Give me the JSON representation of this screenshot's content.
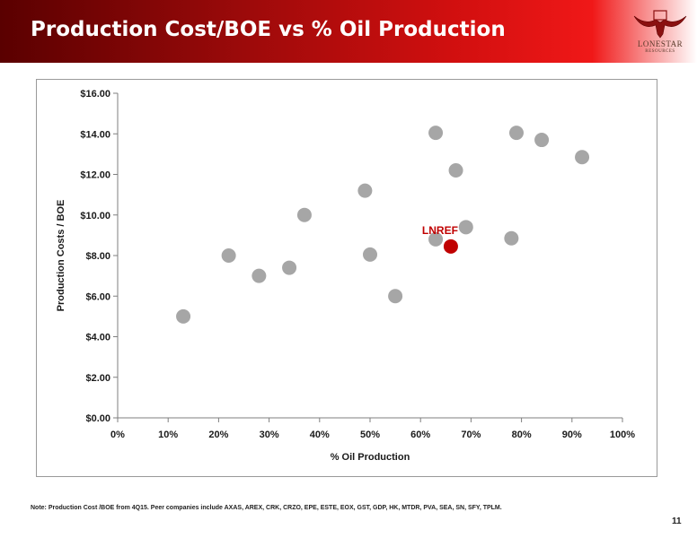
{
  "header": {
    "title": "Production Cost/BOE vs % Oil Production",
    "logo_word": "LONESTAR",
    "logo_sub": "RESOURCES",
    "logo_icon": "longhorn-icon"
  },
  "chart_data": {
    "type": "scatter",
    "title": "",
    "xlabel": "% Oil Production",
    "ylabel": "Production Costs / BOE",
    "xlim": [
      0,
      100
    ],
    "ylim": [
      0,
      16
    ],
    "x_ticks": [
      "0%",
      "10%",
      "20%",
      "30%",
      "40%",
      "50%",
      "60%",
      "70%",
      "80%",
      "90%",
      "100%"
    ],
    "y_ticks": [
      "$0.00",
      "$2.00",
      "$4.00",
      "$6.00",
      "$8.00",
      "$10.00",
      "$12.00",
      "$14.00",
      "$16.00"
    ],
    "grid": false,
    "legend": "none",
    "peer_color": "#a6a6a6",
    "highlight_color": "#c00000",
    "series": [
      {
        "points": [
          {
            "x": 13,
            "y": 5.0
          },
          {
            "x": 22,
            "y": 8.0
          },
          {
            "x": 28,
            "y": 7.0
          },
          {
            "x": 34,
            "y": 7.4
          },
          {
            "x": 37,
            "y": 10.0
          },
          {
            "x": 49,
            "y": 11.2
          },
          {
            "x": 50,
            "y": 8.05
          },
          {
            "x": 55,
            "y": 6.0
          },
          {
            "x": 63,
            "y": 14.05
          },
          {
            "x": 63,
            "y": 8.8
          },
          {
            "x": 67,
            "y": 12.2
          },
          {
            "x": 69,
            "y": 9.4
          },
          {
            "x": 78,
            "y": 8.85
          },
          {
            "x": 79,
            "y": 14.05
          },
          {
            "x": 84,
            "y": 13.7
          },
          {
            "x": 92,
            "y": 12.85
          }
        ]
      },
      {
        "name": "LNREF",
        "points": [
          {
            "x": 66,
            "y": 8.45
          }
        ]
      }
    ]
  },
  "footnote": "Note: Production Cost /BOE from 4Q15. Peer companies include AXAS, AREX, CRK, CRZO, EPE, ESTE, EOX, GST, GDP, HK, MTDR, PVA, SEA, SN, SFY, TPLM.",
  "page_number": "11"
}
